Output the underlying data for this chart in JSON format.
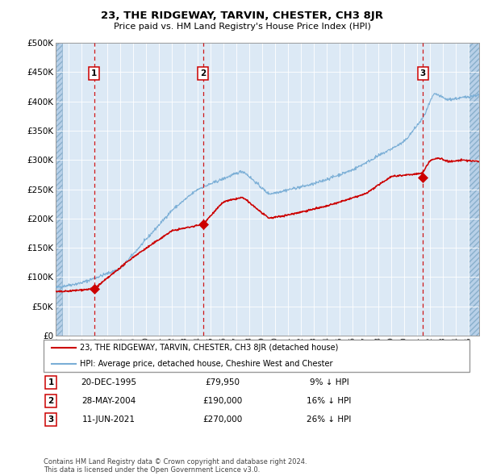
{
  "title": "23, THE RIDGEWAY, TARVIN, CHESTER, CH3 8JR",
  "subtitle": "Price paid vs. HM Land Registry's House Price Index (HPI)",
  "bg_color": "#dce9f5",
  "hatch_color": "#b8d0e8",
  "grid_color": "#ffffff",
  "ylim": [
    0,
    500000
  ],
  "yticks": [
    0,
    50000,
    100000,
    150000,
    200000,
    250000,
    300000,
    350000,
    400000,
    450000,
    500000
  ],
  "sales": [
    {
      "date_num": 1995.97,
      "price": 79950,
      "label": "1"
    },
    {
      "date_num": 2004.41,
      "price": 190000,
      "label": "2"
    },
    {
      "date_num": 2021.44,
      "price": 270000,
      "label": "3"
    }
  ],
  "legend_line1": "23, THE RIDGEWAY, TARVIN, CHESTER, CH3 8JR (detached house)",
  "legend_line2": "HPI: Average price, detached house, Cheshire West and Chester",
  "table_rows": [
    {
      "num": "1",
      "date": "20-DEC-1995",
      "price": "£79,950",
      "hpi": "9% ↓ HPI"
    },
    {
      "num": "2",
      "date": "28-MAY-2004",
      "price": "£190,000",
      "hpi": "16% ↓ HPI"
    },
    {
      "num": "3",
      "date": "11-JUN-2021",
      "price": "£270,000",
      "hpi": "26% ↓ HPI"
    }
  ],
  "footer": "Contains HM Land Registry data © Crown copyright and database right 2024.\nThis data is licensed under the Open Government Licence v3.0.",
  "red_line_color": "#cc0000",
  "blue_line_color": "#7aaed6",
  "vline_color": "#cc0000",
  "xmin": 1993.0,
  "xmax": 2025.8,
  "hatch_xmin": 1993.0,
  "hatch_xmax": 1993.5,
  "hatch_xmin2": 2025.0,
  "hatch_xmax2": 2025.8
}
